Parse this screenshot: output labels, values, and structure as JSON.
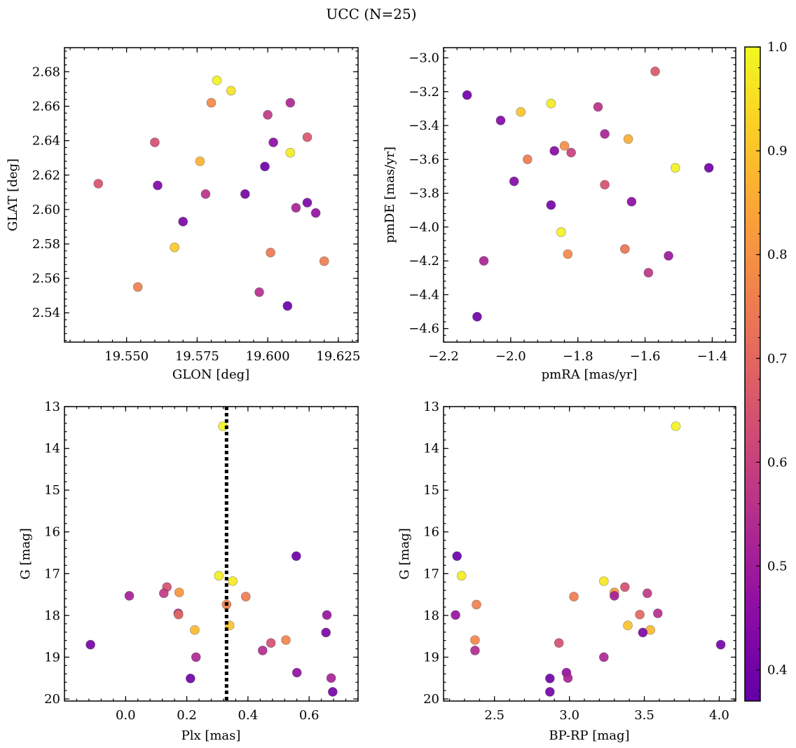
{
  "figure": {
    "title": "UCC (N=25)"
  },
  "chart_data": [
    {
      "type": "scatter",
      "id": "glon-glat",
      "xlabel": "GLON [deg]",
      "ylabel": "GLAT [deg]",
      "xlim": [
        19.528,
        19.632
      ],
      "ylim": [
        2.523,
        2.694
      ],
      "invert_y": false,
      "xticks": [
        19.55,
        19.575,
        19.6,
        19.625
      ],
      "xtick_labels": [
        "19.550",
        "19.575",
        "19.600",
        "19.625"
      ],
      "yticks": [
        2.54,
        2.56,
        2.58,
        2.6,
        2.62,
        2.64,
        2.66,
        2.68
      ],
      "ytick_labels": [
        "2.54",
        "2.56",
        "2.58",
        "2.60",
        "2.62",
        "2.64",
        "2.66",
        "2.68"
      ],
      "grid": false,
      "points": [
        {
          "x": 19.582,
          "y": 2.675,
          "c": 0.99
        },
        {
          "x": 19.587,
          "y": 2.669,
          "c": 0.96
        },
        {
          "x": 19.58,
          "y": 2.662,
          "c": 0.78
        },
        {
          "x": 19.608,
          "y": 2.662,
          "c": 0.53
        },
        {
          "x": 19.6,
          "y": 2.655,
          "c": 0.58
        },
        {
          "x": 19.614,
          "y": 2.642,
          "c": 0.66
        },
        {
          "x": 19.56,
          "y": 2.639,
          "c": 0.64
        },
        {
          "x": 19.602,
          "y": 2.639,
          "c": 0.46
        },
        {
          "x": 19.608,
          "y": 2.633,
          "c": 0.98
        },
        {
          "x": 19.576,
          "y": 2.628,
          "c": 0.87
        },
        {
          "x": 19.599,
          "y": 2.625,
          "c": 0.39
        },
        {
          "x": 19.54,
          "y": 2.615,
          "c": 0.65
        },
        {
          "x": 19.561,
          "y": 2.614,
          "c": 0.43
        },
        {
          "x": 19.578,
          "y": 2.609,
          "c": 0.56
        },
        {
          "x": 19.592,
          "y": 2.609,
          "c": 0.41
        },
        {
          "x": 19.614,
          "y": 2.604,
          "c": 0.42
        },
        {
          "x": 19.61,
          "y": 2.601,
          "c": 0.52
        },
        {
          "x": 19.617,
          "y": 2.598,
          "c": 0.47
        },
        {
          "x": 19.57,
          "y": 2.593,
          "c": 0.42
        },
        {
          "x": 19.567,
          "y": 2.578,
          "c": 0.91
        },
        {
          "x": 19.601,
          "y": 2.575,
          "c": 0.74
        },
        {
          "x": 19.62,
          "y": 2.57,
          "c": 0.75
        },
        {
          "x": 19.554,
          "y": 2.555,
          "c": 0.76
        },
        {
          "x": 19.597,
          "y": 2.552,
          "c": 0.55
        },
        {
          "x": 19.607,
          "y": 2.544,
          "c": 0.39
        }
      ]
    },
    {
      "type": "scatter",
      "id": "pmra-pmde",
      "xlabel": "pmRA [mas/yr]",
      "ylabel": "pmDE [mas/yr]",
      "xlim": [
        -2.2,
        -1.33
      ],
      "ylim": [
        -4.68,
        -2.94
      ],
      "invert_y": false,
      "xticks": [
        -2.2,
        -2.0,
        -1.8,
        -1.6,
        -1.4
      ],
      "xtick_labels": [
        "−2.2",
        "−2.0",
        "−1.8",
        "−1.6",
        "−1.4"
      ],
      "yticks": [
        -4.6,
        -4.4,
        -4.2,
        -4.0,
        -3.8,
        -3.6,
        -3.4,
        -3.2,
        -3.0
      ],
      "ytick_labels": [
        "−4.6",
        "−4.4",
        "−4.2",
        "−4.0",
        "−3.8",
        "−3.6",
        "−3.4",
        "−3.2",
        "−3.0"
      ],
      "grid": false,
      "points": [
        {
          "x": -1.57,
          "y": -3.08,
          "c": 0.66
        },
        {
          "x": -2.13,
          "y": -3.22,
          "c": 0.4
        },
        {
          "x": -1.88,
          "y": -3.27,
          "c": 0.98
        },
        {
          "x": -1.74,
          "y": -3.29,
          "c": 0.56
        },
        {
          "x": -1.97,
          "y": -3.32,
          "c": 0.9
        },
        {
          "x": -2.03,
          "y": -3.37,
          "c": 0.44
        },
        {
          "x": -1.72,
          "y": -3.45,
          "c": 0.52
        },
        {
          "x": -1.65,
          "y": -3.48,
          "c": 0.86
        },
        {
          "x": -1.84,
          "y": -3.52,
          "c": 0.79
        },
        {
          "x": -1.87,
          "y": -3.55,
          "c": 0.45
        },
        {
          "x": -1.82,
          "y": -3.56,
          "c": 0.6
        },
        {
          "x": -1.95,
          "y": -3.6,
          "c": 0.75
        },
        {
          "x": -1.51,
          "y": -3.65,
          "c": 0.99
        },
        {
          "x": -1.41,
          "y": -3.65,
          "c": 0.4
        },
        {
          "x": -1.99,
          "y": -3.73,
          "c": 0.44
        },
        {
          "x": -1.72,
          "y": -3.75,
          "c": 0.64
        },
        {
          "x": -1.64,
          "y": -3.85,
          "c": 0.46
        },
        {
          "x": -1.88,
          "y": -3.87,
          "c": 0.41
        },
        {
          "x": -1.85,
          "y": -4.03,
          "c": 0.99
        },
        {
          "x": -1.66,
          "y": -4.13,
          "c": 0.73
        },
        {
          "x": -1.83,
          "y": -4.16,
          "c": 0.78
        },
        {
          "x": -1.53,
          "y": -4.17,
          "c": 0.49
        },
        {
          "x": -2.08,
          "y": -4.2,
          "c": 0.52
        },
        {
          "x": -1.59,
          "y": -4.27,
          "c": 0.57
        },
        {
          "x": -2.1,
          "y": -4.53,
          "c": 0.4
        }
      ]
    },
    {
      "type": "scatter",
      "id": "plx-g",
      "xlabel": "Plx [mas]",
      "ylabel": "G [mag]",
      "xlim": [
        -0.2,
        0.76
      ],
      "ylim": [
        13.0,
        20.05
      ],
      "invert_y": true,
      "xticks": [
        0.0,
        0.2,
        0.4,
        0.6
      ],
      "xtick_labels": [
        "0.0",
        "0.2",
        "0.4",
        "0.6"
      ],
      "yticks": [
        13,
        14,
        15,
        16,
        17,
        18,
        19,
        20
      ],
      "ytick_labels": [
        "13",
        "14",
        "15",
        "16",
        "17",
        "18",
        "19",
        "20"
      ],
      "grid": false,
      "vline": {
        "x": 0.33,
        "style": "dotted",
        "color": "#000000"
      },
      "points": [
        {
          "x": 0.318,
          "y": 13.47,
          "c": 0.99
        },
        {
          "x": 0.558,
          "y": 16.58,
          "c": 0.39
        },
        {
          "x": 0.305,
          "y": 17.05,
          "c": 0.98
        },
        {
          "x": 0.35,
          "y": 17.18,
          "c": 0.97
        },
        {
          "x": 0.135,
          "y": 17.32,
          "c": 0.64
        },
        {
          "x": 0.175,
          "y": 17.45,
          "c": 0.81
        },
        {
          "x": 0.125,
          "y": 17.47,
          "c": 0.58
        },
        {
          "x": 0.012,
          "y": 17.53,
          "c": 0.51
        },
        {
          "x": 0.393,
          "y": 17.55,
          "c": 0.75
        },
        {
          "x": 0.33,
          "y": 17.74,
          "c": 0.76
        },
        {
          "x": 0.172,
          "y": 17.95,
          "c": 0.55
        },
        {
          "x": 0.173,
          "y": 17.98,
          "c": 0.7
        },
        {
          "x": 0.658,
          "y": 17.99,
          "c": 0.48
        },
        {
          "x": 0.34,
          "y": 18.24,
          "c": 0.9
        },
        {
          "x": 0.226,
          "y": 18.35,
          "c": 0.88
        },
        {
          "x": 0.655,
          "y": 18.41,
          "c": 0.42
        },
        {
          "x": 0.524,
          "y": 18.59,
          "c": 0.77
        },
        {
          "x": 0.475,
          "y": 18.66,
          "c": 0.64
        },
        {
          "x": -0.115,
          "y": 18.7,
          "c": 0.41
        },
        {
          "x": 0.448,
          "y": 18.84,
          "c": 0.54
        },
        {
          "x": 0.23,
          "y": 19.0,
          "c": 0.53
        },
        {
          "x": 0.56,
          "y": 19.37,
          "c": 0.47
        },
        {
          "x": 0.672,
          "y": 19.5,
          "c": 0.52
        },
        {
          "x": 0.212,
          "y": 19.51,
          "c": 0.4
        },
        {
          "x": 0.677,
          "y": 19.83,
          "c": 0.41
        }
      ]
    },
    {
      "type": "scatter",
      "id": "bprp-g",
      "xlabel": "BP-RP [mag]",
      "ylabel": "G [mag]",
      "xlim": [
        2.16,
        4.11
      ],
      "ylim": [
        13.0,
        20.05
      ],
      "invert_y": true,
      "xticks": [
        2.5,
        3.0,
        3.5,
        4.0
      ],
      "xtick_labels": [
        "2.5",
        "3.0",
        "3.5",
        "4.0"
      ],
      "yticks": [
        13,
        14,
        15,
        16,
        17,
        18,
        19,
        20
      ],
      "ytick_labels": [
        "13",
        "14",
        "15",
        "16",
        "17",
        "18",
        "19",
        "20"
      ],
      "grid": false,
      "points": [
        {
          "x": 3.71,
          "y": 13.47,
          "c": 0.99
        },
        {
          "x": 2.25,
          "y": 16.58,
          "c": 0.39
        },
        {
          "x": 2.28,
          "y": 17.05,
          "c": 0.98
        },
        {
          "x": 3.23,
          "y": 17.18,
          "c": 0.97
        },
        {
          "x": 3.37,
          "y": 17.32,
          "c": 0.64
        },
        {
          "x": 3.3,
          "y": 17.45,
          "c": 0.81
        },
        {
          "x": 3.52,
          "y": 17.47,
          "c": 0.58
        },
        {
          "x": 3.3,
          "y": 17.53,
          "c": 0.51
        },
        {
          "x": 3.03,
          "y": 17.55,
          "c": 0.75
        },
        {
          "x": 2.38,
          "y": 17.74,
          "c": 0.76
        },
        {
          "x": 3.59,
          "y": 17.95,
          "c": 0.55
        },
        {
          "x": 3.47,
          "y": 17.98,
          "c": 0.7
        },
        {
          "x": 2.24,
          "y": 17.99,
          "c": 0.48
        },
        {
          "x": 3.39,
          "y": 18.24,
          "c": 0.9
        },
        {
          "x": 3.54,
          "y": 18.35,
          "c": 0.88
        },
        {
          "x": 3.49,
          "y": 18.41,
          "c": 0.42
        },
        {
          "x": 2.37,
          "y": 18.59,
          "c": 0.77
        },
        {
          "x": 2.93,
          "y": 18.66,
          "c": 0.64
        },
        {
          "x": 4.01,
          "y": 18.7,
          "c": 0.41
        },
        {
          "x": 2.37,
          "y": 18.84,
          "c": 0.54
        },
        {
          "x": 3.23,
          "y": 19.0,
          "c": 0.53
        },
        {
          "x": 2.98,
          "y": 19.37,
          "c": 0.47
        },
        {
          "x": 2.99,
          "y": 19.5,
          "c": 0.52
        },
        {
          "x": 2.87,
          "y": 19.51,
          "c": 0.4
        },
        {
          "x": 2.87,
          "y": 19.83,
          "c": 0.41
        }
      ]
    }
  ],
  "colorbar": {
    "colormap": "plasma",
    "range": [
      0.37,
      1.0
    ],
    "ticks": [
      0.4,
      0.5,
      0.6,
      0.7,
      0.8,
      0.9,
      1.0
    ],
    "tick_labels": [
      "0.4",
      "0.5",
      "0.6",
      "0.7",
      "0.8",
      "0.9",
      "1.0"
    ]
  }
}
